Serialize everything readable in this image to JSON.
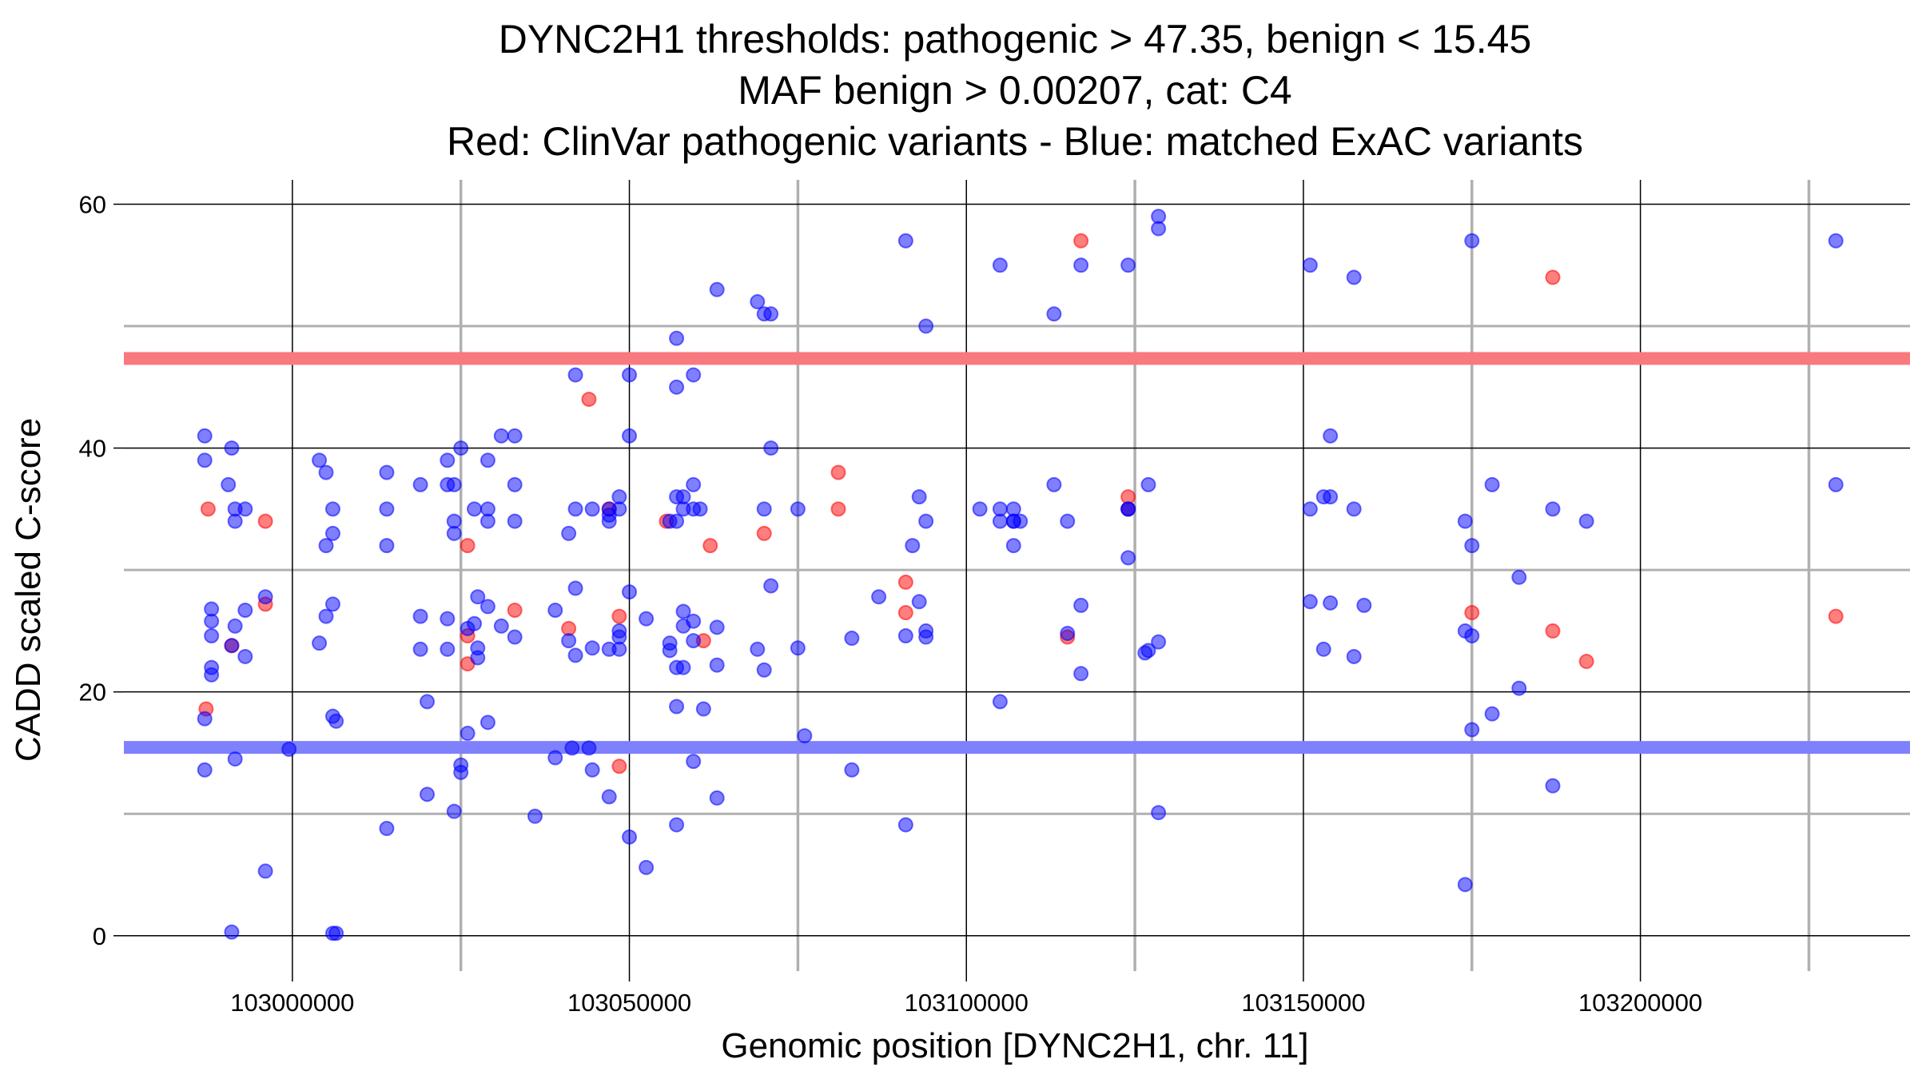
{
  "chart_data": {
    "type": "scatter",
    "title_lines": [
      "DYNC2H1 thresholds: pathogenic > 47.35, benign < 15.45",
      "MAF benign > 0.00207, cat: C4",
      "Red: ClinVar pathogenic variants - Blue: matched ExAC variants"
    ],
    "xlabel": "Genomic position [DYNC2H1, chr. 11]",
    "ylabel": "CADD scaled C-score",
    "xlim": [
      102975000,
      103240000
    ],
    "ylim": [
      -2.9,
      62
    ],
    "x_ticks": [
      103000000,
      103050000,
      103100000,
      103150000,
      103200000
    ],
    "x_tick_labels": [
      "103000000",
      "103050000",
      "103100000",
      "103150000",
      "103200000"
    ],
    "y_ticks": [
      0,
      20,
      40,
      60
    ],
    "y_tick_labels": [
      "0",
      "20",
      "40",
      "60"
    ],
    "major_vlines": [
      103000000,
      103050000,
      103100000,
      103150000,
      103200000
    ],
    "minor_vlines": [
      103025000,
      103075000,
      103125000,
      103175000,
      103225000
    ],
    "major_hlines": [
      0,
      20,
      40,
      60
    ],
    "minor_hlines": [
      10,
      30,
      50
    ],
    "thresholds": {
      "pathogenic": 47.35,
      "benign": 15.45
    },
    "colors": {
      "pathogenic_line": "#f87a7e",
      "benign_line": "#7f80fb",
      "clinvar_point": "#ff0000",
      "exac_point": "#0000ff",
      "major_grid": "#000000",
      "minor_grid": "#b0b0b0"
    },
    "series": [
      {
        "name": "ClinVar pathogenic variants",
        "color": "#ff0000",
        "points": [
          [
            102987500,
            35
          ],
          [
            102987200,
            18.6
          ],
          [
            102991000,
            23.8
          ],
          [
            102996000,
            34
          ],
          [
            102996000,
            27.2
          ],
          [
            103026000,
            32
          ],
          [
            103026000,
            24.6
          ],
          [
            103026000,
            22.3
          ],
          [
            103033000,
            26.7
          ],
          [
            103041000,
            25.2
          ],
          [
            103044000,
            44
          ],
          [
            103047000,
            35
          ],
          [
            103048500,
            26.2
          ],
          [
            103048500,
            13.9
          ],
          [
            103055500,
            34
          ],
          [
            103061000,
            24.2
          ],
          [
            103062000,
            32
          ],
          [
            103070000,
            33
          ],
          [
            103081000,
            38
          ],
          [
            103081000,
            35
          ],
          [
            103091000,
            29
          ],
          [
            103091000,
            26.5
          ],
          [
            103117000,
            57
          ],
          [
            103115000,
            24.5
          ],
          [
            103124000,
            36
          ],
          [
            103124000,
            35
          ],
          [
            103175000,
            26.5
          ],
          [
            103187000,
            54
          ],
          [
            103187000,
            25
          ],
          [
            103192000,
            22.5
          ],
          [
            103229000,
            26.2
          ]
        ]
      },
      {
        "name": "matched ExAC variants",
        "color": "#0000ff",
        "points": [
          [
            102987000,
            41
          ],
          [
            102987000,
            39
          ],
          [
            102987000,
            17.8
          ],
          [
            102987000,
            13.6
          ],
          [
            102988000,
            26.8
          ],
          [
            102988000,
            25.8
          ],
          [
            102988000,
            24.6
          ],
          [
            102988000,
            22
          ],
          [
            102988000,
            21.4
          ],
          [
            102990500,
            37
          ],
          [
            102991000,
            40
          ],
          [
            102991000,
            23.8
          ],
          [
            102991000,
            0.3
          ],
          [
            102991500,
            35
          ],
          [
            102991500,
            34
          ],
          [
            102991500,
            25.4
          ],
          [
            102991500,
            14.5
          ],
          [
            102993000,
            35
          ],
          [
            102993000,
            26.7
          ],
          [
            102993000,
            22.9
          ],
          [
            102996000,
            27.8
          ],
          [
            102996000,
            5.3
          ],
          [
            102999500,
            15.3
          ],
          [
            103004000,
            39
          ],
          [
            103004000,
            24
          ],
          [
            103005000,
            38
          ],
          [
            103005000,
            32
          ],
          [
            103005000,
            26.2
          ],
          [
            103006000,
            35
          ],
          [
            103006000,
            33
          ],
          [
            103006000,
            27.2
          ],
          [
            103006000,
            18
          ],
          [
            103006500,
            17.6
          ],
          [
            103006000,
            0.2
          ],
          [
            103006500,
            0.2
          ],
          [
            103014000,
            38
          ],
          [
            103014000,
            35
          ],
          [
            103014000,
            32
          ],
          [
            103014000,
            8.8
          ],
          [
            103019000,
            37
          ],
          [
            103019000,
            26.2
          ],
          [
            103019000,
            23.5
          ],
          [
            103020000,
            19.2
          ],
          [
            103020000,
            11.6
          ],
          [
            103023000,
            39
          ],
          [
            103023000,
            37
          ],
          [
            103023000,
            26
          ],
          [
            103023000,
            23.5
          ],
          [
            103024000,
            37
          ],
          [
            103024000,
            34
          ],
          [
            103024000,
            33
          ],
          [
            103024000,
            10.2
          ],
          [
            103025000,
            40
          ],
          [
            103025000,
            14
          ],
          [
            103025000,
            13.4
          ],
          [
            103026000,
            25.2
          ],
          [
            103026000,
            16.6
          ],
          [
            103027000,
            35
          ],
          [
            103027000,
            25.6
          ],
          [
            103027500,
            27.8
          ],
          [
            103027500,
            23.6
          ],
          [
            103027500,
            22.8
          ],
          [
            103029000,
            39
          ],
          [
            103029000,
            35
          ],
          [
            103029000,
            34
          ],
          [
            103029000,
            27
          ],
          [
            103029000,
            17.5
          ],
          [
            103031000,
            41
          ],
          [
            103031000,
            25.4
          ],
          [
            103033000,
            41
          ],
          [
            103033000,
            37
          ],
          [
            103033000,
            34
          ],
          [
            103033000,
            24.5
          ],
          [
            103036000,
            9.8
          ],
          [
            103039000,
            26.7
          ],
          [
            103039000,
            14.6
          ],
          [
            103041000,
            33
          ],
          [
            103041000,
            24.2
          ],
          [
            103041500,
            15.4
          ],
          [
            103042000,
            46
          ],
          [
            103042000,
            35
          ],
          [
            103042000,
            28.5
          ],
          [
            103042000,
            23
          ],
          [
            103044500,
            35
          ],
          [
            103044500,
            23.6
          ],
          [
            103044500,
            13.6
          ],
          [
            103044000,
            15.4
          ],
          [
            103047000,
            35
          ],
          [
            103047000,
            34.5
          ],
          [
            103047000,
            34
          ],
          [
            103047000,
            23.5
          ],
          [
            103047000,
            11.4
          ],
          [
            103048500,
            36
          ],
          [
            103048500,
            35
          ],
          [
            103048500,
            25
          ],
          [
            103048500,
            24.5
          ],
          [
            103048500,
            23.5
          ],
          [
            103050000,
            46
          ],
          [
            103050000,
            41
          ],
          [
            103050000,
            28.2
          ],
          [
            103050000,
            8.1
          ],
          [
            103052500,
            26
          ],
          [
            103052500,
            5.6
          ],
          [
            103056000,
            34
          ],
          [
            103056000,
            24
          ],
          [
            103056000,
            23.4
          ],
          [
            103057000,
            49
          ],
          [
            103057000,
            45
          ],
          [
            103057000,
            36
          ],
          [
            103057000,
            34
          ],
          [
            103057000,
            22
          ],
          [
            103057000,
            18.8
          ],
          [
            103057000,
            9.1
          ],
          [
            103058000,
            36
          ],
          [
            103058000,
            35
          ],
          [
            103058000,
            26.6
          ],
          [
            103058000,
            25.4
          ],
          [
            103058000,
            22
          ],
          [
            103059500,
            46
          ],
          [
            103059500,
            37
          ],
          [
            103059500,
            35
          ],
          [
            103059500,
            25.8
          ],
          [
            103059500,
            24.2
          ],
          [
            103059500,
            14.3
          ],
          [
            103060500,
            35
          ],
          [
            103061000,
            18.6
          ],
          [
            103063000,
            53
          ],
          [
            103063000,
            25.3
          ],
          [
            103063000,
            22.2
          ],
          [
            103063000,
            11.3
          ],
          [
            103069000,
            52
          ],
          [
            103069000,
            23.5
          ],
          [
            103070000,
            51
          ],
          [
            103070000,
            35
          ],
          [
            103070000,
            21.8
          ],
          [
            103071000,
            51
          ],
          [
            103071000,
            40
          ],
          [
            103071000,
            28.7
          ],
          [
            103075000,
            35
          ],
          [
            103075000,
            23.6
          ],
          [
            103076000,
            16.4
          ],
          [
            103083000,
            24.4
          ],
          [
            103083000,
            13.6
          ],
          [
            103087000,
            27.8
          ],
          [
            103091000,
            57
          ],
          [
            103091000,
            24.6
          ],
          [
            103091000,
            9.1
          ],
          [
            103092000,
            32
          ],
          [
            103093000,
            36
          ],
          [
            103093000,
            27.4
          ],
          [
            103094000,
            50
          ],
          [
            103094000,
            34
          ],
          [
            103094000,
            25
          ],
          [
            103094000,
            24.5
          ],
          [
            103102000,
            35
          ],
          [
            103105000,
            55
          ],
          [
            103105000,
            35
          ],
          [
            103105000,
            34
          ],
          [
            103105000,
            19.2
          ],
          [
            103107000,
            35
          ],
          [
            103107000,
            34
          ],
          [
            103107000,
            32
          ],
          [
            103107000,
            34
          ],
          [
            103108000,
            34
          ],
          [
            103113000,
            51
          ],
          [
            103113000,
            37
          ],
          [
            103115000,
            34
          ],
          [
            103115000,
            24.8
          ],
          [
            103117000,
            55
          ],
          [
            103117000,
            27.1
          ],
          [
            103117000,
            21.5
          ],
          [
            103124000,
            55
          ],
          [
            103124000,
            35
          ],
          [
            103124000,
            31
          ],
          [
            103124000,
            35
          ],
          [
            103126500,
            23.2
          ],
          [
            103127000,
            37
          ],
          [
            103127000,
            23.4
          ],
          [
            103128500,
            59
          ],
          [
            103128500,
            58
          ],
          [
            103128500,
            24.1
          ],
          [
            103128500,
            10.1
          ],
          [
            103151000,
            55
          ],
          [
            103151000,
            35
          ],
          [
            103151000,
            27.4
          ],
          [
            103153000,
            36
          ],
          [
            103153000,
            23.5
          ],
          [
            103154000,
            41
          ],
          [
            103154000,
            36
          ],
          [
            103154000,
            27.3
          ],
          [
            103157500,
            54
          ],
          [
            103157500,
            35
          ],
          [
            103157500,
            22.9
          ],
          [
            103159000,
            27.1
          ],
          [
            103174000,
            34
          ],
          [
            103174000,
            25
          ],
          [
            103174000,
            4.2
          ],
          [
            103175000,
            57
          ],
          [
            103175000,
            32
          ],
          [
            103175000,
            24.6
          ],
          [
            103175000,
            16.9
          ],
          [
            103178000,
            37
          ],
          [
            103178000,
            18.2
          ],
          [
            103182000,
            29.4
          ],
          [
            103182000,
            20.3
          ],
          [
            103187000,
            35
          ],
          [
            103187000,
            12.3
          ],
          [
            103192000,
            34
          ],
          [
            103229000,
            57
          ],
          [
            103229000,
            37
          ]
        ]
      }
    ]
  }
}
